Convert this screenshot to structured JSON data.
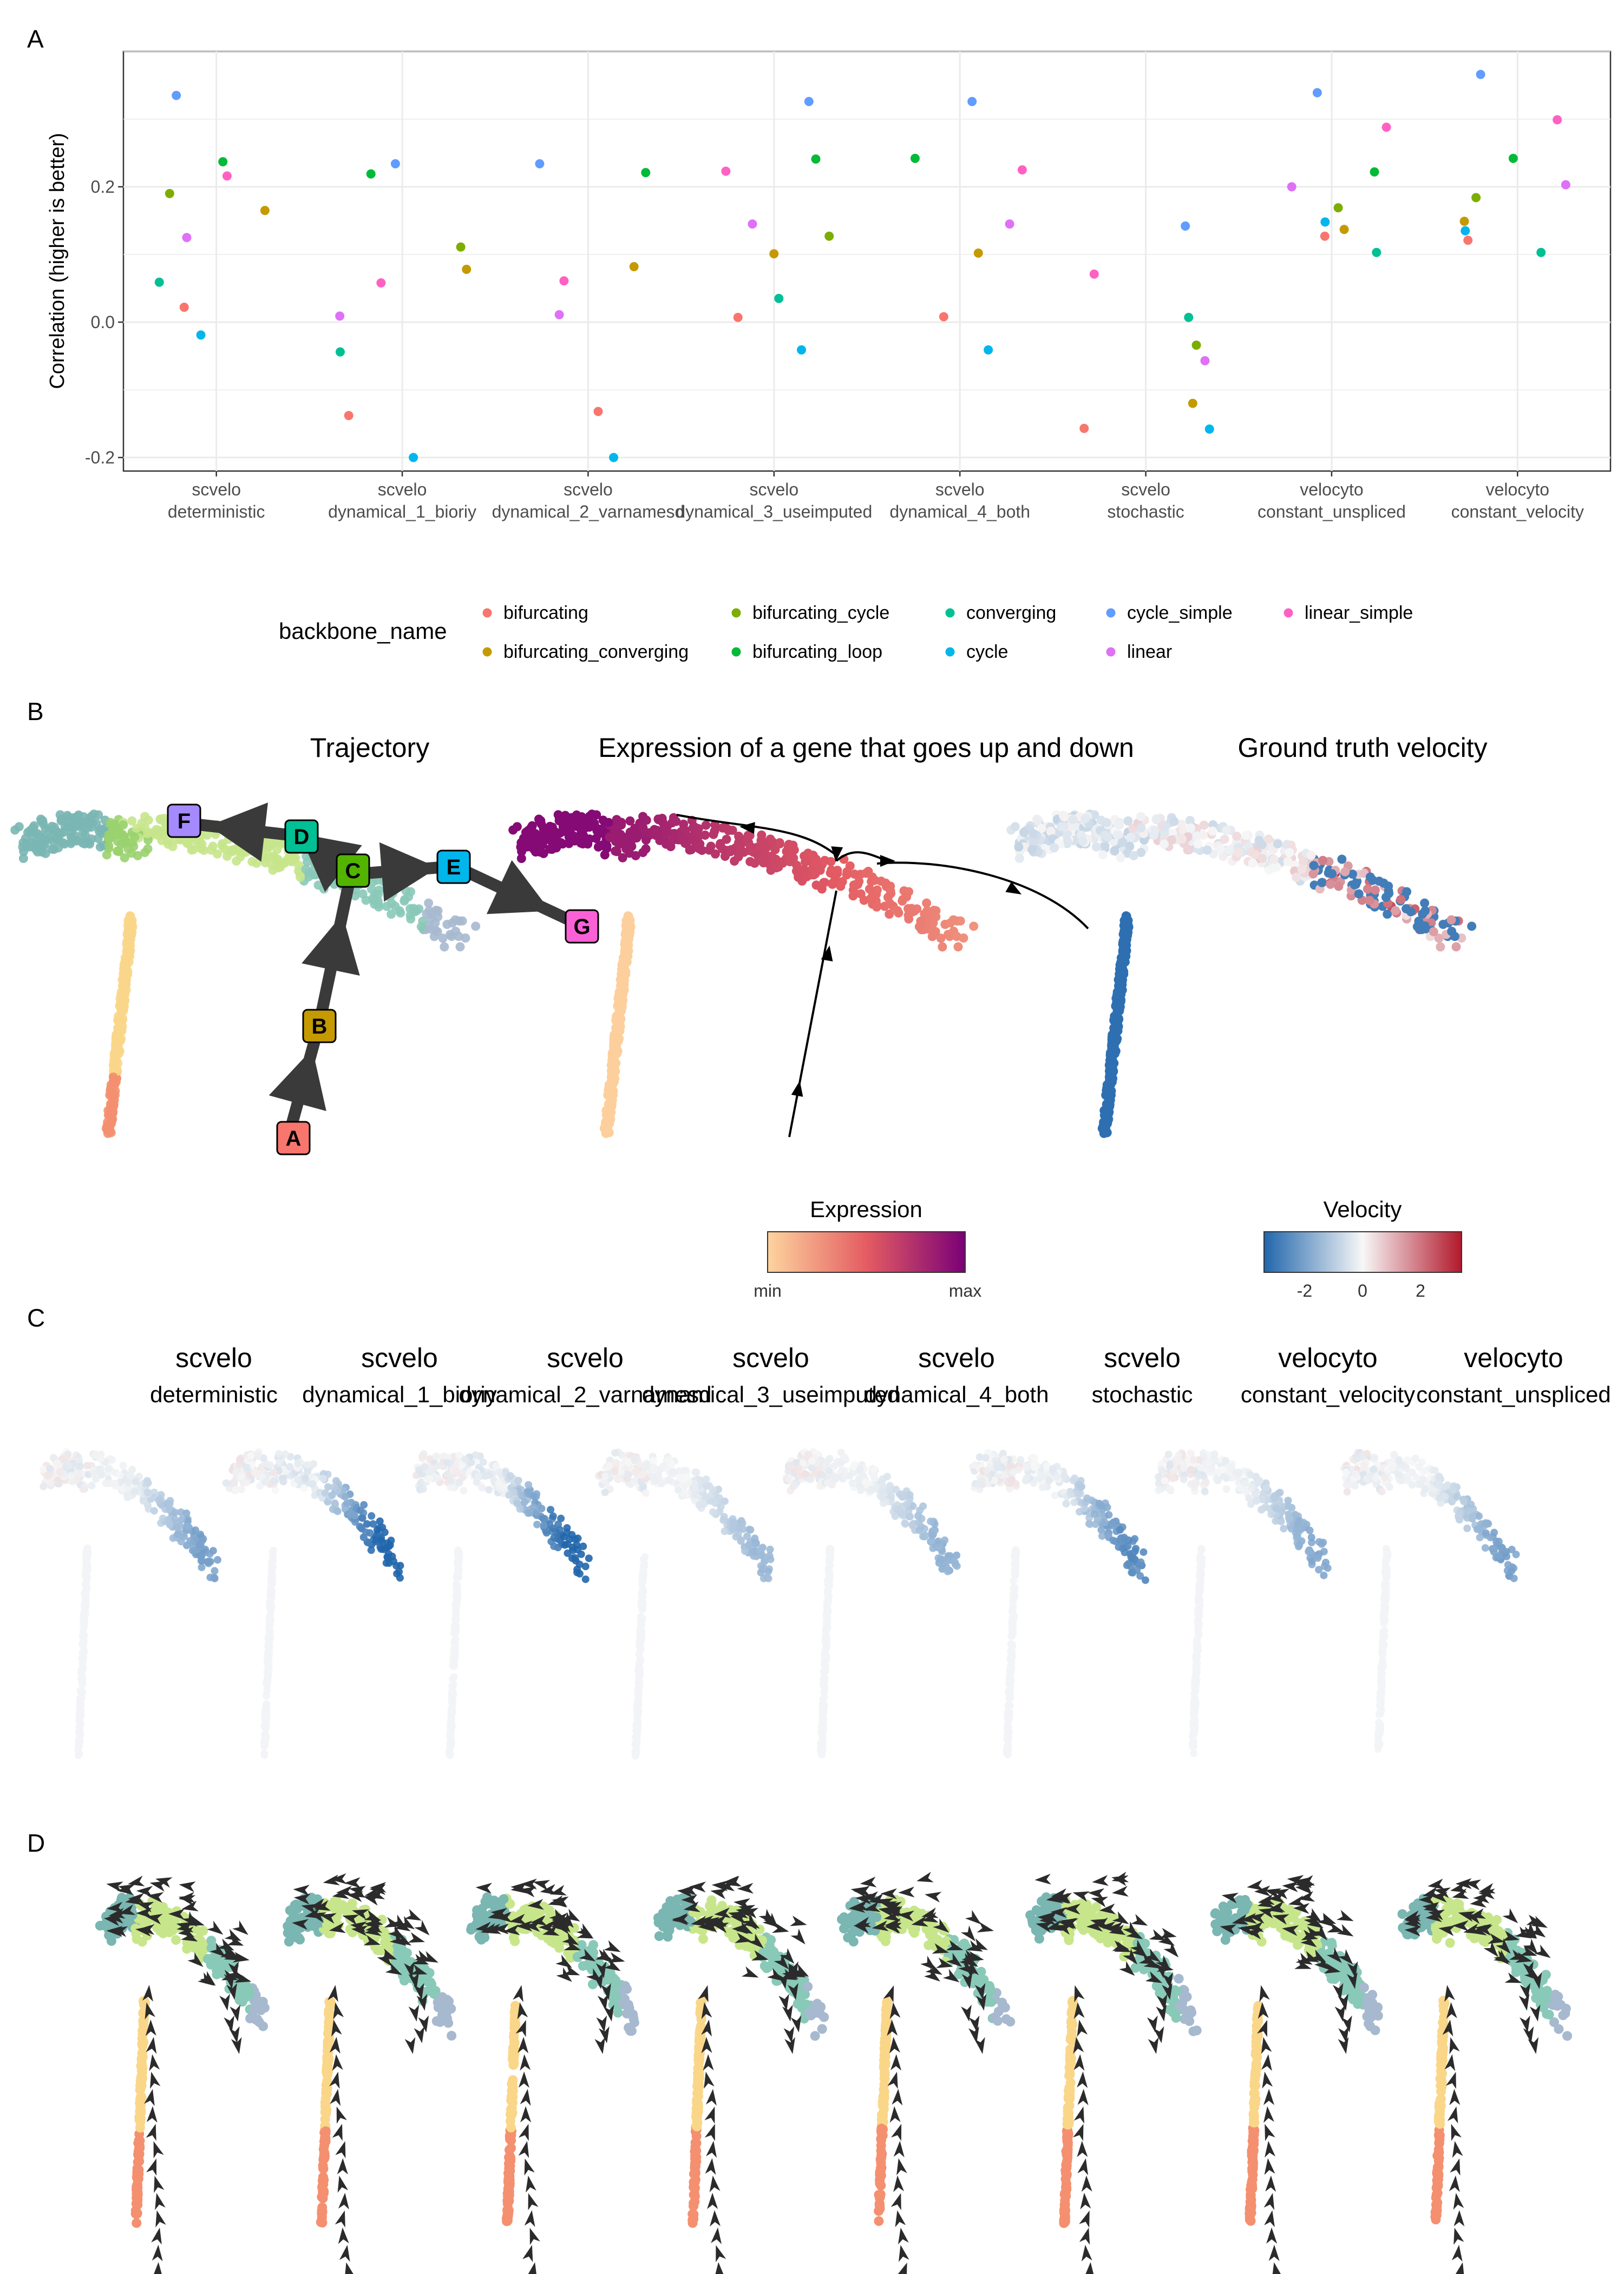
{
  "panels": {
    "a": "A",
    "b": "B",
    "c": "C",
    "d": "D"
  },
  "chart_data": {
    "type": "scatter",
    "ylabel": "Correlation (higher is better)",
    "ylim": [
      -0.22,
      0.4
    ],
    "y_ticks": [
      -0.2,
      0.0,
      0.2
    ],
    "y_tick_labels": [
      "-0.2",
      "0.0",
      "0.2"
    ],
    "grid": true,
    "categories": [
      [
        "scvelo",
        "deterministic"
      ],
      [
        "scvelo",
        "dynamical_1_bioriy"
      ],
      [
        "scvelo",
        "dynamical_2_varnamesd"
      ],
      [
        "scvelo",
        "dynamical_3_useimputed"
      ],
      [
        "scvelo",
        "dynamical_4_both"
      ],
      [
        "scvelo",
        "stochastic"
      ],
      [
        "velocyto",
        "constant_unspliced"
      ],
      [
        "velocyto",
        "constant_velocity"
      ]
    ],
    "legend_title": "backbone_name",
    "legend_position": "bottom",
    "series": [
      {
        "name": "bifurcating",
        "color": "#F8766D",
        "values": [
          0.022,
          -0.138,
          -0.132,
          0.007,
          0.008,
          -0.157,
          0.127,
          0.121
        ]
      },
      {
        "name": "bifurcating_converging",
        "color": "#C49A00",
        "values": [
          0.165,
          0.078,
          0.082,
          0.101,
          0.102,
          -0.12,
          0.137,
          0.149
        ]
      },
      {
        "name": "bifurcating_cycle",
        "color": "#7CAE00",
        "values": [
          0.19,
          0.111,
          null,
          0.127,
          null,
          -0.034,
          0.169,
          0.184
        ]
      },
      {
        "name": "bifurcating_loop",
        "color": "#00BA38",
        "values": [
          0.237,
          0.219,
          0.221,
          0.241,
          0.242,
          null,
          0.222,
          0.242
        ]
      },
      {
        "name": "converging",
        "color": "#00C094",
        "values": [
          0.059,
          -0.044,
          null,
          0.035,
          null,
          0.007,
          0.103,
          0.103
        ]
      },
      {
        "name": "cycle",
        "color": "#00B6EB",
        "values": [
          -0.019,
          -0.2,
          -0.2,
          -0.041,
          -0.041,
          -0.158,
          0.148,
          0.135
        ]
      },
      {
        "name": "cycle_simple",
        "color": "#619CFF",
        "values": [
          0.335,
          0.234,
          0.234,
          0.326,
          0.326,
          0.142,
          0.339,
          0.366
        ]
      },
      {
        "name": "linear",
        "color": "#DF70F8",
        "values": [
          0.125,
          0.009,
          0.011,
          0.145,
          0.145,
          -0.057,
          0.2,
          0.203
        ]
      },
      {
        "name": "linear_simple",
        "color": "#FF61C3",
        "values": [
          0.216,
          0.058,
          0.061,
          0.223,
          0.225,
          0.071,
          0.288,
          0.299
        ]
      }
    ]
  },
  "panel_b": {
    "titles": [
      "Trajectory",
      "Expression of a gene that goes up and down",
      "Ground truth velocity"
    ],
    "milestones": [
      {
        "label": "A",
        "color": "#F8766D"
      },
      {
        "label": "B",
        "color": "#C49A00"
      },
      {
        "label": "C",
        "color": "#53B400"
      },
      {
        "label": "D",
        "color": "#00C094"
      },
      {
        "label": "E",
        "color": "#00B6EB"
      },
      {
        "label": "F",
        "color": "#A58AFF"
      },
      {
        "label": "G",
        "color": "#FB61D7"
      }
    ],
    "expression_legend": {
      "title": "Expression",
      "min": "min",
      "max": "max",
      "colors": [
        "#FDD49E",
        "#E45C62",
        "#7A0177"
      ]
    },
    "velocity_legend": {
      "title": "Velocity",
      "ticks": [
        -2,
        0,
        2
      ],
      "tick_labels": [
        "-2",
        "0",
        "2"
      ],
      "colors": [
        "#2166AC",
        "#F7F7F7",
        "#B2182B"
      ]
    }
  },
  "panel_c": {
    "titles": [
      [
        "scvelo",
        "deterministic"
      ],
      [
        "scvelo",
        "dynamical_1_bioriy"
      ],
      [
        "scvelo",
        "dynamical_2_varnamesd"
      ],
      [
        "scvelo",
        "dynamical_3_useimputed"
      ],
      [
        "scvelo",
        "dynamical_4_both"
      ],
      [
        "scvelo",
        "stochastic"
      ],
      [
        "velocyto",
        "constant_velocity"
      ],
      [
        "velocyto",
        "constant_unspliced"
      ]
    ],
    "intensities": [
      0.55,
      1.0,
      1.0,
      0.4,
      0.45,
      0.7,
      0.5,
      0.55
    ]
  },
  "panel_d": {
    "count": 8
  }
}
